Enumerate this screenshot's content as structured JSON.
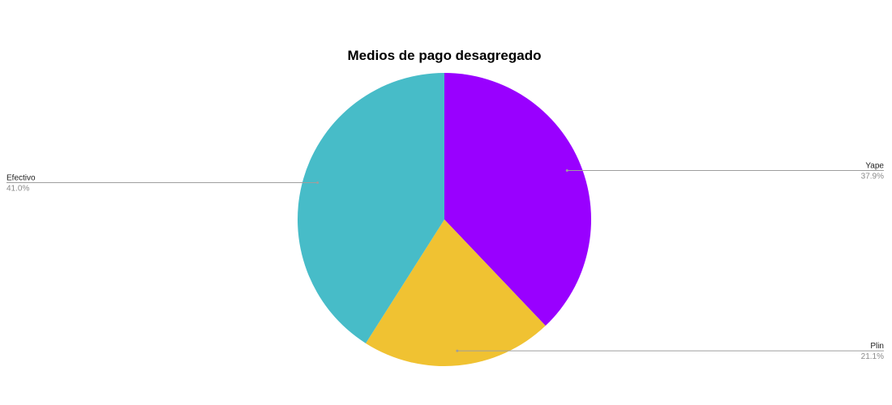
{
  "chart_data": {
    "type": "pie",
    "title": "Medios de pago desagregado",
    "slices": [
      {
        "label": "Yape",
        "value": 37.9,
        "percent_label": "37.9%",
        "color": "#9900FF",
        "label_side": "right"
      },
      {
        "label": "Plin",
        "value": 21.1,
        "percent_label": "21.1%",
        "color": "#F0C232",
        "label_side": "right"
      },
      {
        "label": "Efectivo",
        "value": 41.0,
        "percent_label": "41.0%",
        "color": "#47BCC8",
        "label_side": "left"
      }
    ],
    "start_angle": "top",
    "direction": "clockwise",
    "legend": "none",
    "leader_line_color": "#9e9e9e"
  }
}
